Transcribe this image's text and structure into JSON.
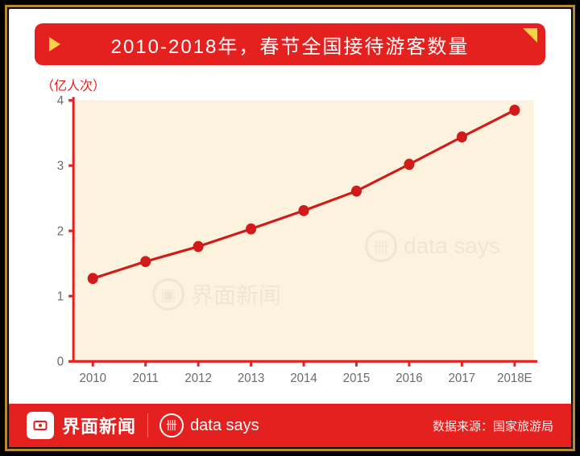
{
  "frame": {
    "gold_border_color": "#b88a2e",
    "outer_bg": "#000000"
  },
  "card_bg": "#ffffff",
  "title": {
    "text": "2010-2018年，春节全国接待游客数量",
    "bg": "#e52120",
    "text_color": "#ffffff",
    "triangle_color": "#f9d24a",
    "fold_color": "#f9d24a",
    "fontsize": 24
  },
  "chart": {
    "type": "line",
    "y_unit_label": "（亿人次）",
    "y_unit_color": "#e52120",
    "categories": [
      "2010",
      "2011",
      "2012",
      "2013",
      "2014",
      "2015",
      "2016",
      "2017",
      "2018E"
    ],
    "values": [
      1.27,
      1.53,
      1.76,
      2.03,
      2.31,
      2.61,
      3.02,
      3.44,
      3.85
    ],
    "line_color": "#d11a1a",
    "line_width": 3,
    "marker_color": "#d11a1a",
    "marker_radius": 6.5,
    "ylim": [
      0,
      4
    ],
    "ytick_step": 1,
    "axis_color": "#e52120",
    "axis_width": 3,
    "tick_label_color": "#6b6b6b",
    "tick_label_fontsize": 15,
    "plot_bg": "#fdf2dd",
    "watermark_text_1": "界面新闻",
    "watermark_text_2": "data says"
  },
  "footer": {
    "bg": "#e52120",
    "brand_name": "界面新闻",
    "brand_logo_color": "#e52120",
    "data_says": "data says",
    "source_label": "数据来源：国家旅游局",
    "text_color": "#ffffff"
  }
}
